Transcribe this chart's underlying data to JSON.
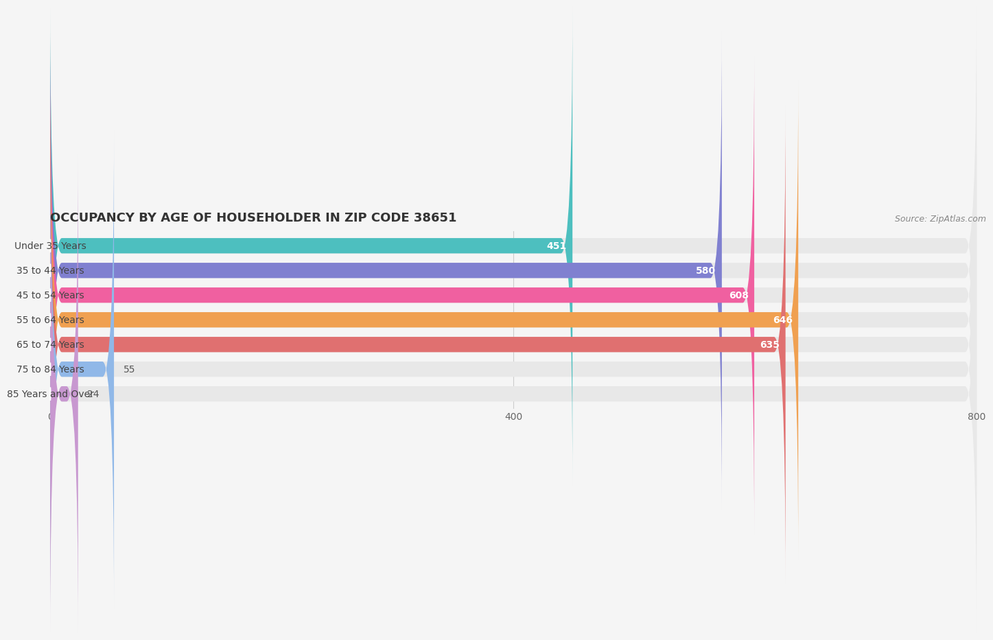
{
  "title": "OCCUPANCY BY AGE OF HOUSEHOLDER IN ZIP CODE 38651",
  "source": "Source: ZipAtlas.com",
  "categories": [
    "Under 35 Years",
    "35 to 44 Years",
    "45 to 54 Years",
    "55 to 64 Years",
    "65 to 74 Years",
    "75 to 84 Years",
    "85 Years and Over"
  ],
  "values": [
    451,
    580,
    608,
    646,
    635,
    55,
    24
  ],
  "bar_colors": [
    "#4DBFBF",
    "#8080D0",
    "#F060A0",
    "#F0A050",
    "#E07070",
    "#90B8E8",
    "#C898D0"
  ],
  "xlim": [
    0,
    800
  ],
  "xticks": [
    0,
    400,
    800
  ],
  "background_color": "#f5f5f5",
  "bar_background_color": "#e8e8e8",
  "title_fontsize": 13,
  "label_fontsize": 10,
  "value_fontsize": 10,
  "bar_height": 0.62,
  "fig_width": 14.06,
  "fig_height": 3.41
}
